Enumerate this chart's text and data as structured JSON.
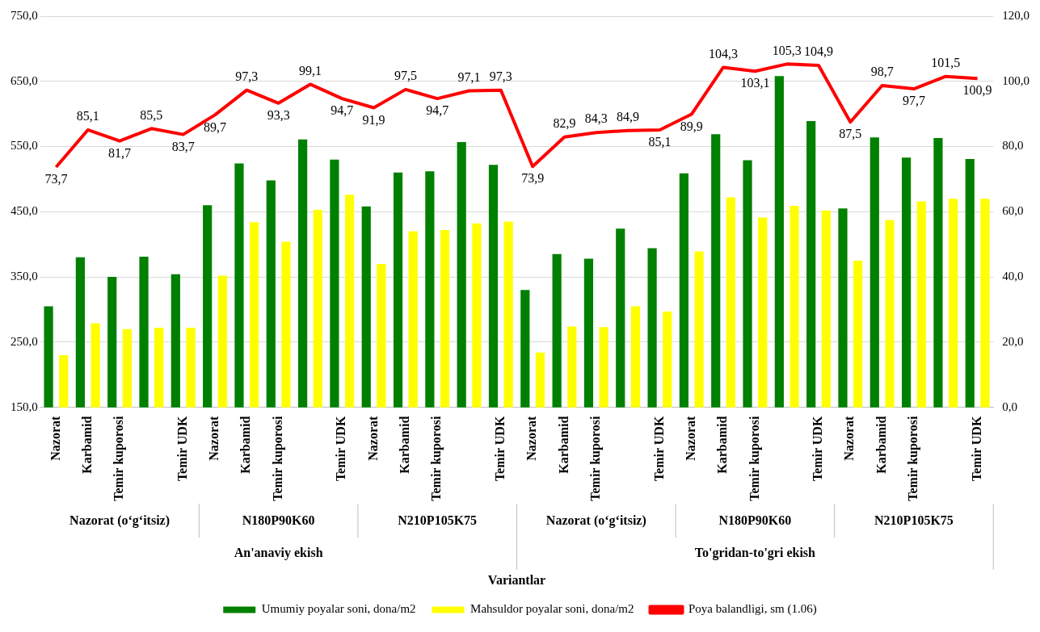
{
  "chart_data": {
    "type": "bar",
    "categories": [
      "Nazorat",
      "Karbamid",
      "Temir kuporosi",
      null,
      "Temir UDK",
      "Nazorat",
      "Karbamid",
      "Temir kuporosi",
      null,
      "Temir UDK",
      "Nazorat",
      "Karbamid",
      "Temir kuporosi",
      null,
      "Temir UDK",
      "Nazorat",
      "Karbamid",
      "Temir kuporosi",
      null,
      "Temir UDK",
      "Nazorat",
      "Karbamid",
      "Temir kuporosi",
      null,
      "Temir UDK",
      "Nazorat",
      "Karbamid",
      "Temir kuporosi",
      null,
      "Temir UDK"
    ],
    "series": [
      {
        "name": "Umumiy poyalar soni, dona/m2",
        "color": "#008000",
        "values": [
          305,
          380,
          350,
          381,
          354,
          460,
          524,
          498,
          561,
          530,
          458,
          510,
          512,
          557,
          522,
          330,
          385,
          378,
          424,
          394,
          509,
          569,
          529,
          658,
          589,
          455,
          564,
          533,
          563,
          531
        ]
      },
      {
        "name": "Mahsuldor poyalar soni, dona/m2",
        "color": "#ffff00",
        "values": [
          230,
          279,
          270,
          272,
          272,
          352,
          434,
          404,
          453,
          476,
          370,
          420,
          422,
          432,
          435,
          234,
          274,
          273,
          305,
          297,
          389,
          472,
          441,
          459,
          452,
          375,
          437,
          466,
          470,
          470
        ]
      },
      {
        "name": "Poya balandligi, sm (1.06)",
        "type": "line",
        "axis": "y2",
        "color": "#ff0000",
        "values": [
          73.7,
          85.1,
          81.7,
          85.5,
          83.7,
          89.7,
          97.3,
          93.3,
          99.1,
          94.7,
          91.9,
          97.5,
          94.7,
          97.1,
          97.3,
          73.9,
          82.9,
          84.3,
          84.9,
          85.1,
          89.9,
          104.3,
          103.1,
          105.3,
          104.9,
          87.5,
          98.7,
          97.7,
          101.5,
          100.9
        ],
        "value_labels": [
          "73,7",
          "85,1",
          "81,7",
          "85,5",
          "83,7",
          "89,7",
          "97,3",
          "93,3",
          "99,1",
          "94,7",
          "91,9",
          "97,5",
          "94,7",
          "97,1",
          "97,3",
          "73,9",
          "82,9",
          "84,3",
          "84,9",
          "85,1",
          "89,9",
          "104,3",
          "103,1",
          "105,3",
          "104,9",
          "87,5",
          "98,7",
          "97,7",
          "101,5",
          "100,9"
        ]
      }
    ],
    "ylim": [
      150,
      750
    ],
    "yticks": [
      {
        "value": 150,
        "label": "150,0"
      },
      {
        "value": 250,
        "label": "250,0"
      },
      {
        "value": 350,
        "label": "350,0"
      },
      {
        "value": 450,
        "label": "450,0"
      },
      {
        "value": 550,
        "label": "550,0"
      },
      {
        "value": 650,
        "label": "650,0"
      },
      {
        "value": 750,
        "label": "750,0"
      }
    ],
    "y2lim": [
      0,
      120
    ],
    "y2ticks": [
      {
        "value": 0,
        "label": "0,0"
      },
      {
        "value": 20,
        "label": "20,0"
      },
      {
        "value": 40,
        "label": "40,0"
      },
      {
        "value": 60,
        "label": "60,0"
      },
      {
        "value": 80,
        "label": "80,0"
      },
      {
        "value": 100,
        "label": "100,0"
      },
      {
        "value": 120,
        "label": "120,0"
      }
    ],
    "annotations": [
      "Nazorat (o‘g‘itsiz)",
      "N180P90K60",
      "N210P105K75",
      "Nazorat (o‘g‘itsiz)",
      "N180P90K60",
      "N210P105K75",
      "An'anaviy ekish",
      "To'gridan-to'gri ekish",
      "Variantlar"
    ],
    "grid": "y",
    "legend": "bottom"
  }
}
